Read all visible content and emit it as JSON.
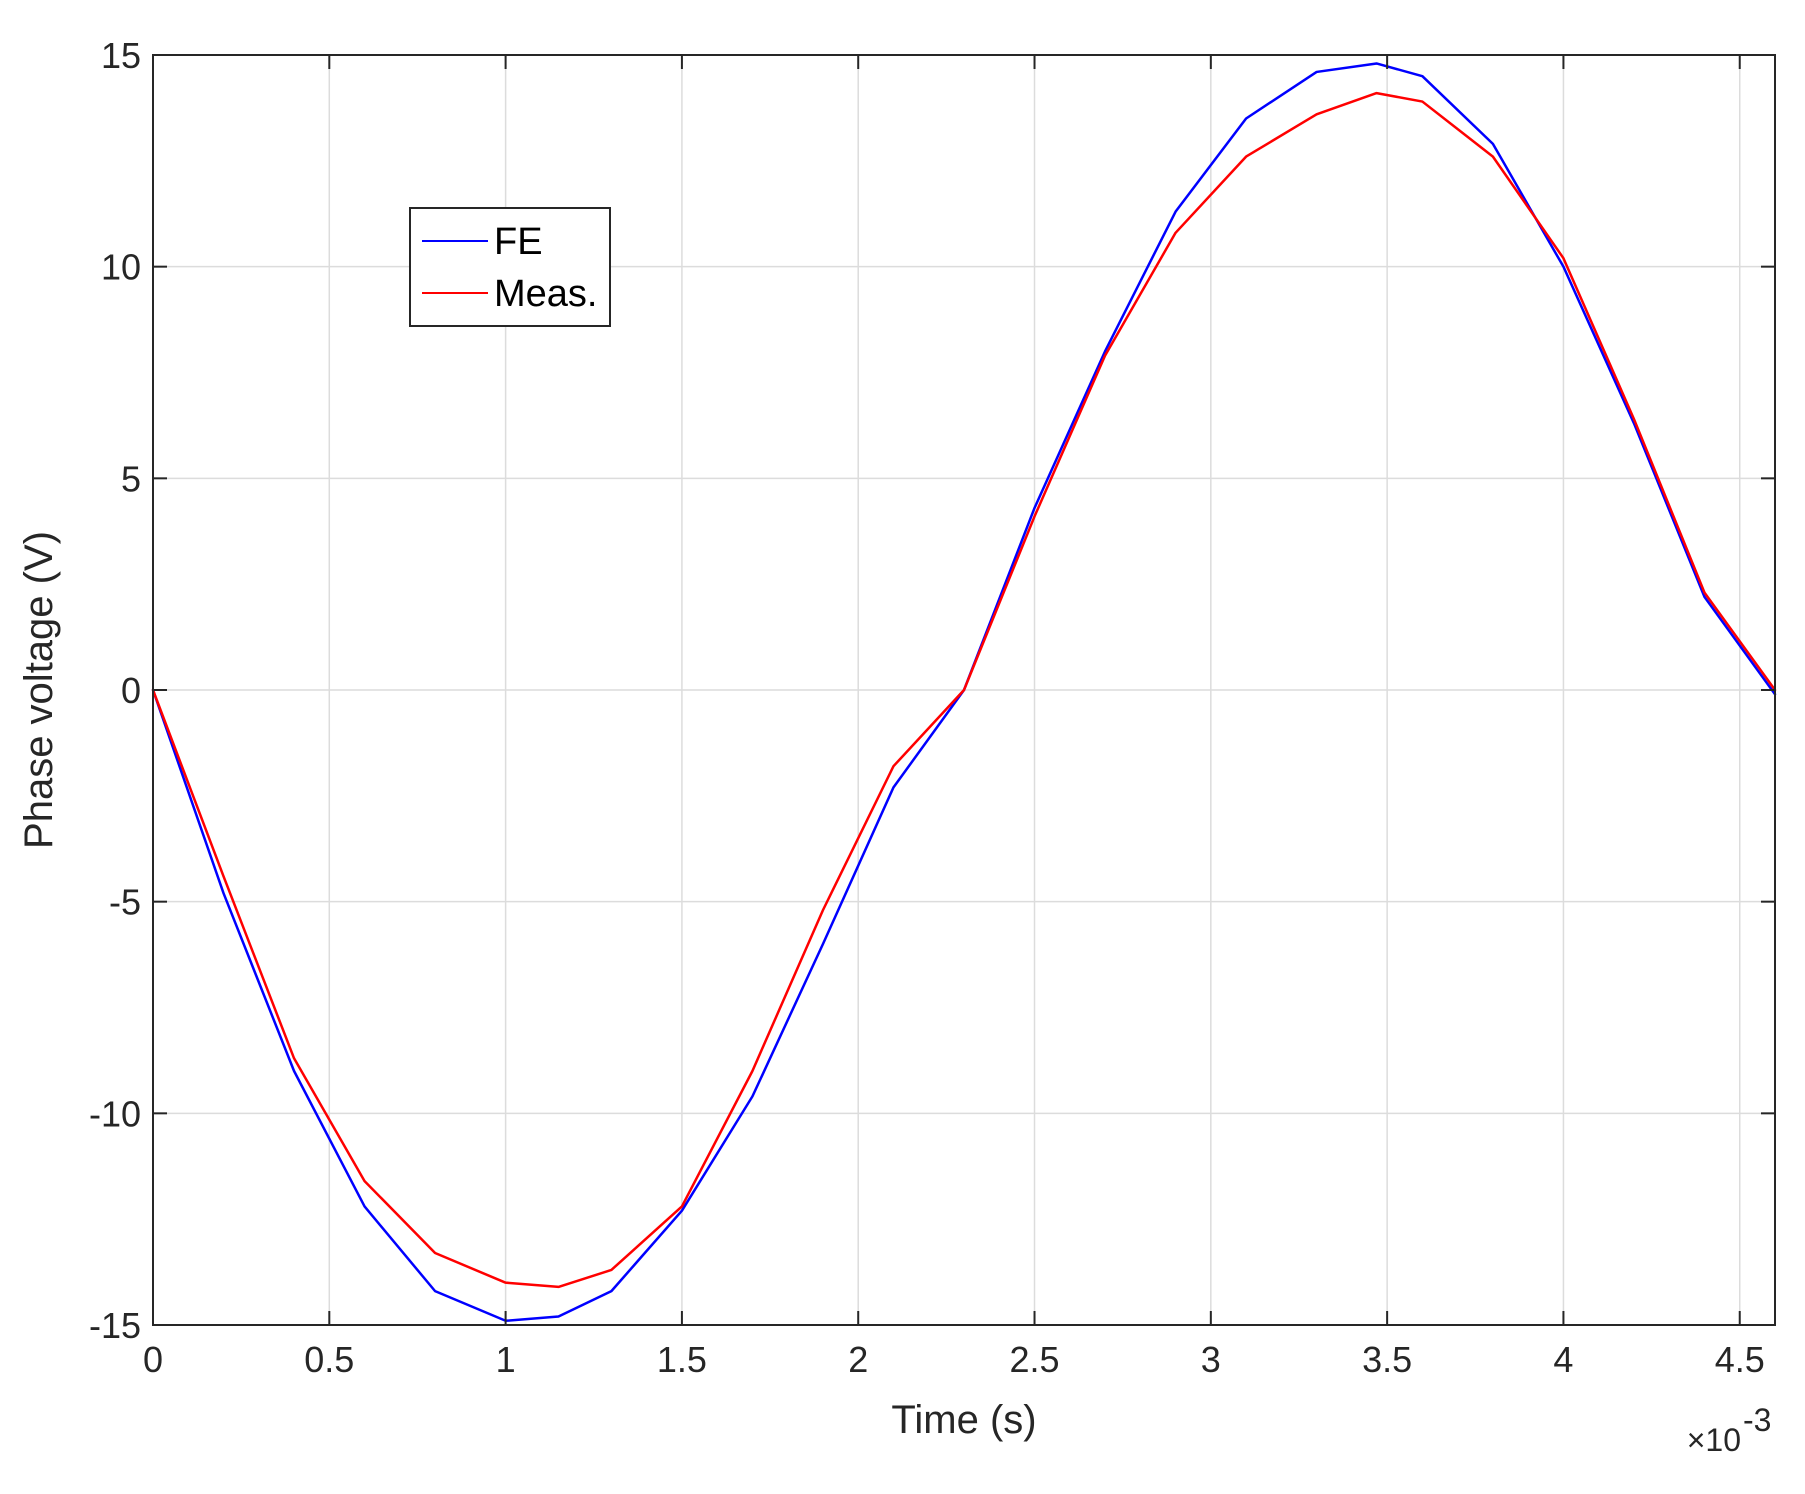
{
  "chart_data": {
    "type": "line",
    "title": "",
    "xlabel": "Time (s)",
    "ylabel": "Phase voltage (V)",
    "x_exponent_label": "×10",
    "x_exponent_power": "-3",
    "x_scale_factor": 0.001,
    "xlim": [
      0,
      0.0046
    ],
    "ylim": [
      -15,
      15
    ],
    "grid": true,
    "legend_position": "upper-left",
    "x_ticks": [
      0,
      0.0005,
      0.001,
      0.0015,
      0.002,
      0.0025,
      0.003,
      0.0035,
      0.004,
      0.0045
    ],
    "x_tick_labels": [
      "0",
      "0.5",
      "1",
      "1.5",
      "2",
      "2.5",
      "3",
      "3.5",
      "4",
      "4.5"
    ],
    "y_ticks": [
      -15,
      -10,
      -5,
      0,
      5,
      10,
      15
    ],
    "y_tick_labels": [
      "-15",
      "-10",
      "-5",
      "0",
      "5",
      "10",
      "15"
    ],
    "series": [
      {
        "name": "FE",
        "color": "#0000ff",
        "x": [
          0,
          0.0002,
          0.0004,
          0.0006,
          0.0008,
          0.001,
          0.00115,
          0.0013,
          0.0015,
          0.0017,
          0.0019,
          0.0021,
          0.0023,
          0.0025,
          0.0027,
          0.0029,
          0.0031,
          0.0033,
          0.00347,
          0.0036,
          0.0038,
          0.004,
          0.0042,
          0.0044,
          0.0046
        ],
        "y": [
          0,
          -4.8,
          -9.0,
          -12.2,
          -14.2,
          -14.9,
          -14.8,
          -14.2,
          -12.3,
          -9.6,
          -6.0,
          -2.3,
          0.0,
          4.3,
          8.0,
          11.3,
          13.5,
          14.6,
          14.8,
          14.5,
          12.9,
          10.0,
          6.3,
          2.2,
          -0.1
        ]
      },
      {
        "name": "Meas.",
        "color": "#ff0000",
        "x": [
          0,
          0.0002,
          0.0004,
          0.0006,
          0.0008,
          0.001,
          0.00115,
          0.0013,
          0.0015,
          0.0017,
          0.0019,
          0.0021,
          0.0023,
          0.0025,
          0.0027,
          0.0029,
          0.0031,
          0.0033,
          0.00347,
          0.0036,
          0.0038,
          0.004,
          0.0042,
          0.0044,
          0.0046
        ],
        "y": [
          0,
          -4.4,
          -8.7,
          -11.6,
          -13.3,
          -14.0,
          -14.1,
          -13.7,
          -12.2,
          -9.0,
          -5.2,
          -1.8,
          0.0,
          4.1,
          7.9,
          10.8,
          12.6,
          13.6,
          14.1,
          13.9,
          12.6,
          10.2,
          6.4,
          2.3,
          0.0
        ]
      }
    ]
  }
}
